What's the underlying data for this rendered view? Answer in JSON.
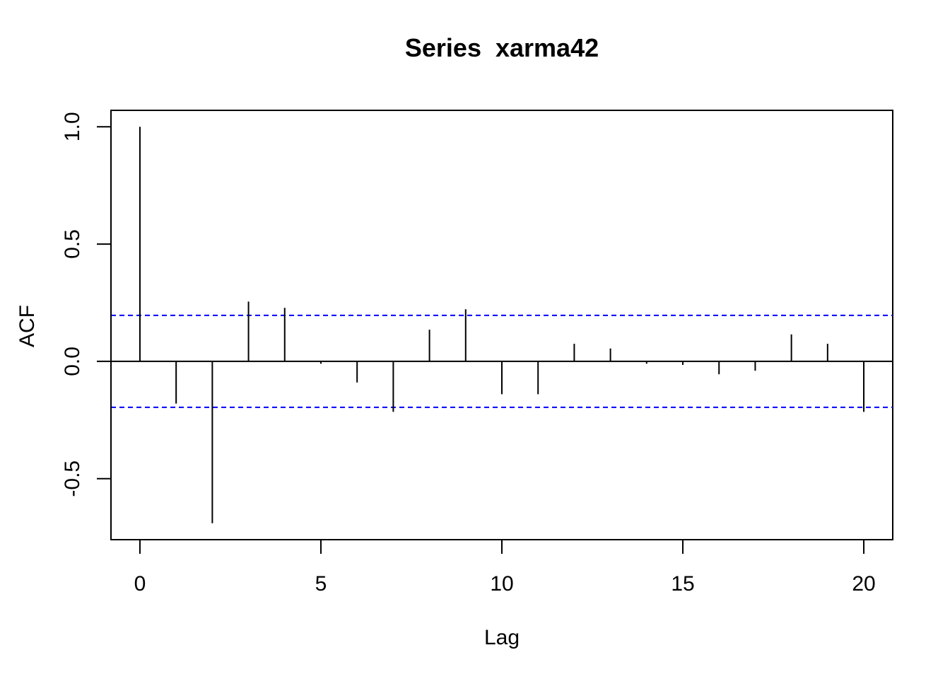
{
  "chart_data": {
    "type": "bar",
    "title": "Series  xarma42",
    "xlabel": "Lag",
    "ylabel": "ACF",
    "xlim": [
      -0.8,
      20.8
    ],
    "ylim": [
      -0.76,
      1.07
    ],
    "xticks": [
      0,
      5,
      10,
      15,
      20
    ],
    "yticks": [
      -0.5,
      0.0,
      0.5,
      1.0
    ],
    "ytick_labels": [
      "-0.5",
      "0.0",
      "0.5",
      "1.0"
    ],
    "lags": [
      0,
      1,
      2,
      3,
      4,
      5,
      6,
      7,
      8,
      9,
      10,
      11,
      12,
      13,
      14,
      15,
      16,
      17,
      18,
      19,
      20
    ],
    "values": [
      1.0,
      -0.18,
      -0.69,
      0.255,
      0.228,
      -0.01,
      -0.09,
      -0.215,
      0.135,
      0.222,
      -0.14,
      -0.14,
      0.075,
      0.055,
      -0.01,
      -0.015,
      -0.055,
      -0.04,
      0.115,
      0.075,
      -0.215
    ],
    "confidence_bound": 0.196,
    "bar_color": "#000000",
    "ci_color": "#0000ff",
    "grid": false,
    "legend": "none"
  }
}
